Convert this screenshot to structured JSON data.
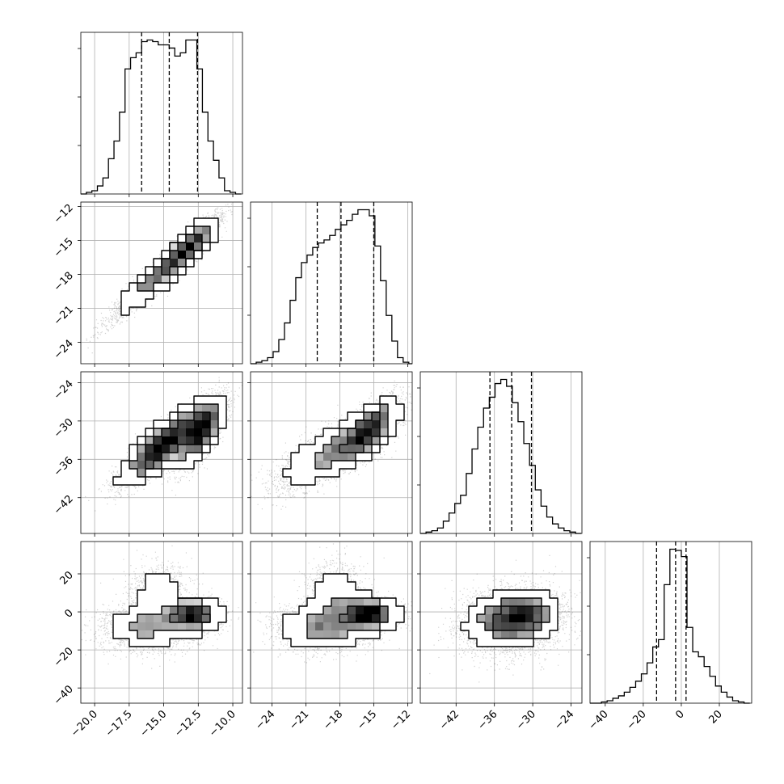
{
  "chart_data": {
    "type": "corner",
    "grid": true,
    "params": [
      {
        "range": [
          -21.0,
          -9.3
        ],
        "ticks": [
          -20.0,
          -17.5,
          -15.0,
          -12.5,
          -10.0
        ],
        "tick_labels": [
          "−20.0",
          "−17.5",
          "−15.0",
          "−12.5",
          "−10.0"
        ],
        "quantiles": [
          -16.6,
          -14.6,
          -12.55
        ]
      },
      {
        "range": [
          -25.9,
          -11.6
        ],
        "ticks": [
          -24,
          -21,
          -18,
          -15,
          -12
        ],
        "tick_labels": [
          "−24",
          "−21",
          "−18",
          "−15",
          "−12"
        ],
        "quantiles": [
          -20.0,
          -17.9,
          -15.0
        ]
      },
      {
        "range": [
          -47.6,
          -22.3
        ],
        "ticks": [
          -42,
          -36,
          -30,
          -24
        ],
        "tick_labels": [
          "−42",
          "−36",
          "−30",
          "−24"
        ],
        "quantiles": [
          -36.7,
          -33.3,
          -30.2
        ]
      },
      {
        "range": [
          -48.0,
          37.0
        ],
        "ticks": [
          -40,
          -20,
          0,
          20
        ],
        "tick_labels": [
          "−40",
          "−20",
          "0",
          "20"
        ],
        "quantiles": [
          -13.0,
          -3.0,
          2.5
        ]
      }
    ],
    "histograms": [
      {
        "param": 0,
        "edges": [
          -21.0,
          -20.6,
          -20.2,
          -19.8,
          -19.4,
          -19.0,
          -18.6,
          -18.2,
          -17.8,
          -17.4,
          -17.0,
          -16.6,
          -16.2,
          -15.8,
          -15.4,
          -15.0,
          -14.6,
          -14.2,
          -13.8,
          -13.4,
          -13.0,
          -12.6,
          -12.2,
          -11.8,
          -11.4,
          -11.0,
          -10.6,
          -10.2,
          -9.8,
          -9.4
        ],
        "counts": [
          0,
          1,
          2,
          5,
          10,
          22,
          33,
          51,
          78,
          85,
          88,
          95,
          96,
          95,
          93,
          93,
          91,
          86,
          88,
          96,
          96,
          78,
          51,
          33,
          21,
          10,
          2,
          1,
          0
        ]
      },
      {
        "param": 1,
        "edges": [
          -25.9,
          -25.4,
          -24.9,
          -24.4,
          -23.9,
          -23.4,
          -22.9,
          -22.4,
          -21.9,
          -21.4,
          -20.9,
          -20.4,
          -19.9,
          -19.4,
          -18.9,
          -18.4,
          -17.9,
          -17.4,
          -16.9,
          -16.4,
          -15.9,
          -15.4,
          -14.9,
          -14.4,
          -13.9,
          -13.4,
          -12.9,
          -12.4,
          -11.9,
          -11.6
        ],
        "counts": [
          0,
          1,
          2,
          4,
          8,
          16,
          27,
          42,
          57,
          67,
          72,
          77,
          80,
          82,
          85,
          89,
          92,
          95,
          99,
          102,
          102,
          98,
          78,
          55,
          32,
          15,
          4,
          1,
          0
        ]
      },
      {
        "param": 2,
        "edges": [
          -47.6,
          -46.7,
          -45.8,
          -44.9,
          -44.0,
          -43.1,
          -42.2,
          -41.3,
          -40.4,
          -39.5,
          -38.6,
          -37.7,
          -36.8,
          -35.9,
          -35.0,
          -34.1,
          -33.2,
          -32.3,
          -31.4,
          -30.5,
          -29.6,
          -28.7,
          -27.8,
          -26.9,
          -26.0,
          -25.1,
          -24.2,
          -23.3,
          -22.4
        ],
        "counts": [
          0,
          1,
          2,
          4,
          9,
          15,
          22,
          28,
          44,
          62,
          78,
          92,
          100,
          110,
          113,
          108,
          96,
          82,
          66,
          50,
          32,
          20,
          12,
          7,
          4,
          2,
          1,
          0
        ]
      },
      {
        "param": 3,
        "edges": [
          -48,
          -45,
          -42,
          -39,
          -36,
          -33,
          -30,
          -27,
          -24,
          -21,
          -18,
          -15,
          -12,
          -9,
          -6,
          -3,
          0,
          3,
          6,
          9,
          12,
          15,
          18,
          21,
          24,
          27,
          30,
          33,
          36
        ],
        "counts": [
          0,
          0,
          1,
          2,
          4,
          6,
          9,
          13,
          18,
          24,
          33,
          46,
          52,
          97,
          126,
          125,
          120,
          62,
          42,
          38,
          30,
          22,
          14,
          9,
          5,
          2,
          1,
          0
        ]
      }
    ],
    "joints": [
      {
        "x_param": 0,
        "y_param": 1,
        "samples": 6000,
        "components": [
          {
            "weight": 0.5,
            "mean": [
              -15.3,
              -17.8
            ],
            "sd": [
              1.7,
              2.0
            ],
            "rho": 0.96
          },
          {
            "weight": 0.5,
            "mean": [
              -13.2,
              -15.7
            ],
            "sd": [
              1.0,
              1.3
            ],
            "rho": 0.9
          }
        ]
      },
      {
        "x_param": 0,
        "y_param": 2,
        "samples": 6000,
        "components": [
          {
            "weight": 0.6,
            "mean": [
              -15.2,
              -34.0
            ],
            "sd": [
              1.5,
              2.9
            ],
            "rho": 0.85
          },
          {
            "weight": 0.4,
            "mean": [
              -12.3,
              -31.5
            ],
            "sd": [
              0.9,
              2.8
            ],
            "rho": 0.7
          }
        ]
      },
      {
        "x_param": 1,
        "y_param": 2,
        "samples": 6000,
        "components": [
          {
            "weight": 0.5,
            "mean": [
              -18.8,
              -35.0
            ],
            "sd": [
              2.4,
              2.8
            ],
            "rho": 0.75
          },
          {
            "weight": 0.5,
            "mean": [
              -15.5,
              -31.5
            ],
            "sd": [
              1.3,
              2.4
            ],
            "rho": 0.7
          }
        ]
      },
      {
        "x_param": 0,
        "y_param": 3,
        "samples": 6000,
        "components": [
          {
            "weight": 0.4,
            "mean": [
              -16.0,
              -8.0
            ],
            "sd": [
              1.7,
              6.0
            ],
            "rho": 0.0
          },
          {
            "weight": 0.42,
            "mean": [
              -12.9,
              -1.5
            ],
            "sd": [
              1.0,
              3.5
            ],
            "rho": 0.0
          },
          {
            "weight": 0.18,
            "mean": [
              -15.3,
              10.0
            ],
            "sd": [
              1.1,
              8.0
            ],
            "rho": 0.0
          }
        ]
      },
      {
        "x_param": 1,
        "y_param": 3,
        "samples": 6000,
        "components": [
          {
            "weight": 0.4,
            "mean": [
              -19.5,
              -8.0
            ],
            "sd": [
              2.1,
              6.0
            ],
            "rho": 0.0
          },
          {
            "weight": 0.42,
            "mean": [
              -15.6,
              -1.0
            ],
            "sd": [
              1.4,
              3.8
            ],
            "rho": 0.0
          },
          {
            "weight": 0.18,
            "mean": [
              -18.5,
              10.0
            ],
            "sd": [
              1.2,
              8.0
            ],
            "rho": 0.0
          }
        ]
      },
      {
        "x_param": 2,
        "y_param": 3,
        "samples": 6000,
        "components": [
          {
            "weight": 0.55,
            "mean": [
              -32.5,
              -3.0
            ],
            "sd": [
              3.2,
              6.0
            ],
            "rho": 0.2
          },
          {
            "weight": 0.45,
            "mean": [
              -33.5,
              -4.0
            ],
            "sd": [
              4.0,
              9.0
            ],
            "rho": 0.1
          }
        ]
      }
    ]
  }
}
